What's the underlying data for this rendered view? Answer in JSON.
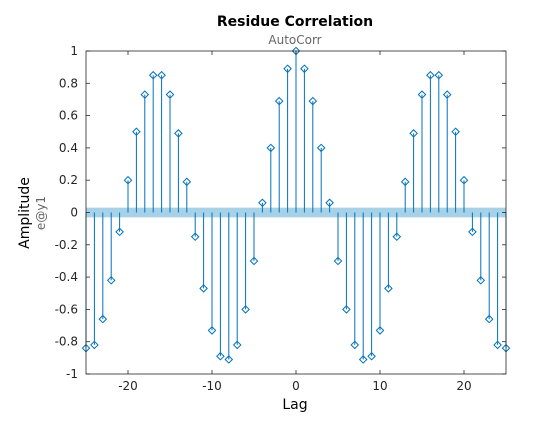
{
  "chart_data": {
    "type": "stem",
    "title": "Residue Correlation",
    "subtitle": "AutoCorr",
    "xlabel": "Lag",
    "ylabel": "Amplitude",
    "channel_label": "e@y1",
    "xlim": [
      -25,
      25
    ],
    "ylim": [
      -1,
      1
    ],
    "xticks": [
      -20,
      -10,
      0,
      10,
      20
    ],
    "yticks": [
      -1,
      -0.8,
      -0.6,
      -0.4,
      -0.2,
      0,
      0.2,
      0.4,
      0.6,
      0.8,
      1
    ],
    "ytick_labels": [
      "-1",
      "-0.8",
      "-0.6",
      "-0.4",
      "-0.2",
      "0",
      "0.2",
      "0.4",
      "0.6",
      "0.8",
      "1"
    ],
    "grid": false,
    "confidence_band": [
      -0.03,
      0.03
    ],
    "colors": {
      "stem": "#0072BD",
      "band": "#A6D1E6",
      "axes": "#262626"
    },
    "x": [
      -25,
      -24,
      -23,
      -22,
      -21,
      -20,
      -19,
      -18,
      -17,
      -16,
      -15,
      -14,
      -13,
      -12,
      -11,
      -10,
      -9,
      -8,
      -7,
      -6,
      -5,
      -4,
      -3,
      -2,
      -1,
      0,
      1,
      2,
      3,
      4,
      5,
      6,
      7,
      8,
      9,
      10,
      11,
      12,
      13,
      14,
      15,
      16,
      17,
      18,
      19,
      20,
      21,
      22,
      23,
      24,
      25
    ],
    "values": [
      -0.84,
      -0.82,
      -0.66,
      -0.42,
      -0.12,
      0.2,
      0.5,
      0.73,
      0.85,
      0.85,
      0.73,
      0.49,
      0.19,
      -0.15,
      -0.47,
      -0.73,
      -0.89,
      -0.91,
      -0.82,
      -0.6,
      -0.3,
      0.06,
      0.4,
      0.69,
      0.89,
      1.0,
      0.89,
      0.69,
      0.4,
      0.06,
      -0.3,
      -0.6,
      -0.82,
      -0.91,
      -0.89,
      -0.73,
      -0.47,
      -0.15,
      0.19,
      0.49,
      0.73,
      0.85,
      0.85,
      0.73,
      0.5,
      0.2,
      -0.12,
      -0.42,
      -0.66,
      -0.82,
      -0.84
    ]
  }
}
